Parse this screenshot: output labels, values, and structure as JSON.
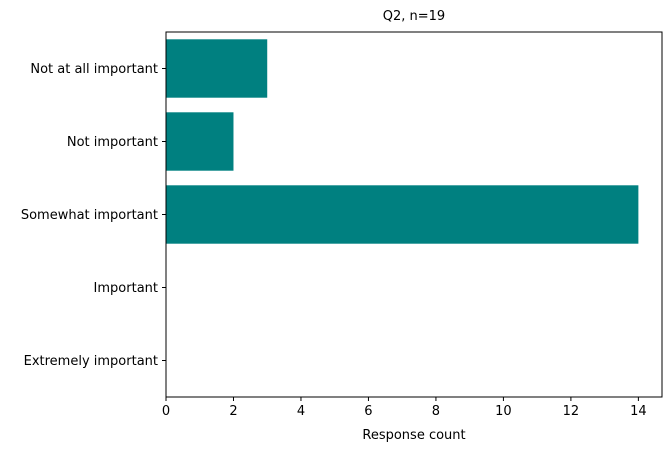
{
  "chart_data": {
    "type": "bar",
    "orientation": "horizontal",
    "title": "Q2, n=19",
    "xlabel": "Response count",
    "ylabel": "",
    "categories": [
      "Not at all important",
      "Not important",
      "Somewhat important",
      "Important",
      "Extremely important"
    ],
    "values": [
      3,
      2,
      14,
      0,
      0
    ],
    "xlim": [
      0,
      14.7
    ],
    "xticks": [
      "0",
      "2",
      "4",
      "6",
      "8",
      "10",
      "12",
      "14"
    ],
    "bar_color": "#008080",
    "grid": false,
    "legend": "none"
  }
}
